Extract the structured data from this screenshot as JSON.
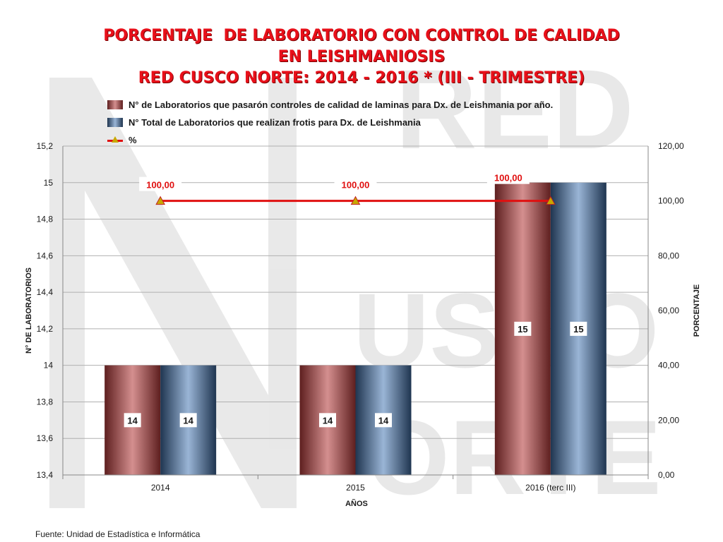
{
  "title": {
    "line1": "PORCENTAJE  DE LABORATORIO CON CONTROL DE CALIDAD",
    "line2": "EN LEISHMANIOSIS",
    "line3": "RED CUSCO NORTE: 2014 - 2016 * (III - TRIMESTRE)"
  },
  "legend": {
    "series1": "N° de Laboratorios que pasarón controles de calidad de  laminas para Dx. de Leishmania por año.",
    "series2": "N° Total de Laboratorios que realizan frotis para Dx. de Leishmania",
    "series3": "%"
  },
  "source": "Fuente: Unidad de Estadística e Informática",
  "colors": {
    "title": "#e8101a",
    "bar1_dark": "#5e1f1f",
    "bar1_light": "#d48f8f",
    "bar2_dark": "#1f3550",
    "bar2_light": "#9ab5d6",
    "line": "#e01010",
    "marker": "#c8a800"
  },
  "chart_data": {
    "type": "bar",
    "categories": [
      "2014",
      "2015",
      "2016 (terc III)"
    ],
    "series": [
      {
        "name": "N° de Laboratorios que pasarón controles de calidad de  laminas para Dx. de Leishmania por año.",
        "type": "bar",
        "values": [
          14,
          14,
          15
        ],
        "labels": [
          "14",
          "14",
          "15"
        ]
      },
      {
        "name": "N° Total de Laboratorios que realizan frotis para Dx. de Leishmania",
        "type": "bar",
        "values": [
          14,
          14,
          15
        ],
        "labels": [
          "14",
          "14",
          "15"
        ]
      },
      {
        "name": "%",
        "type": "line",
        "axis": "right",
        "values": [
          100,
          100,
          100
        ],
        "labels": [
          "100,00",
          "100,00",
          "100,00"
        ]
      }
    ],
    "xlabel": "AÑOS",
    "ylabel": "N° DE LABORATORIOS",
    "y2label": "PORCENTAJE",
    "ylim": [
      13.4,
      15.2
    ],
    "y2lim": [
      0,
      120
    ],
    "yticks": [
      "15,2",
      "15",
      "14,8",
      "14,6",
      "14,4",
      "14,2",
      "14",
      "13,8",
      "13,6",
      "13,4"
    ],
    "y2ticks": [
      "120,00",
      "100,00",
      "80,00",
      "60,00",
      "40,00",
      "20,00",
      "0,00"
    ],
    "grid": true,
    "legend_position": "top"
  }
}
